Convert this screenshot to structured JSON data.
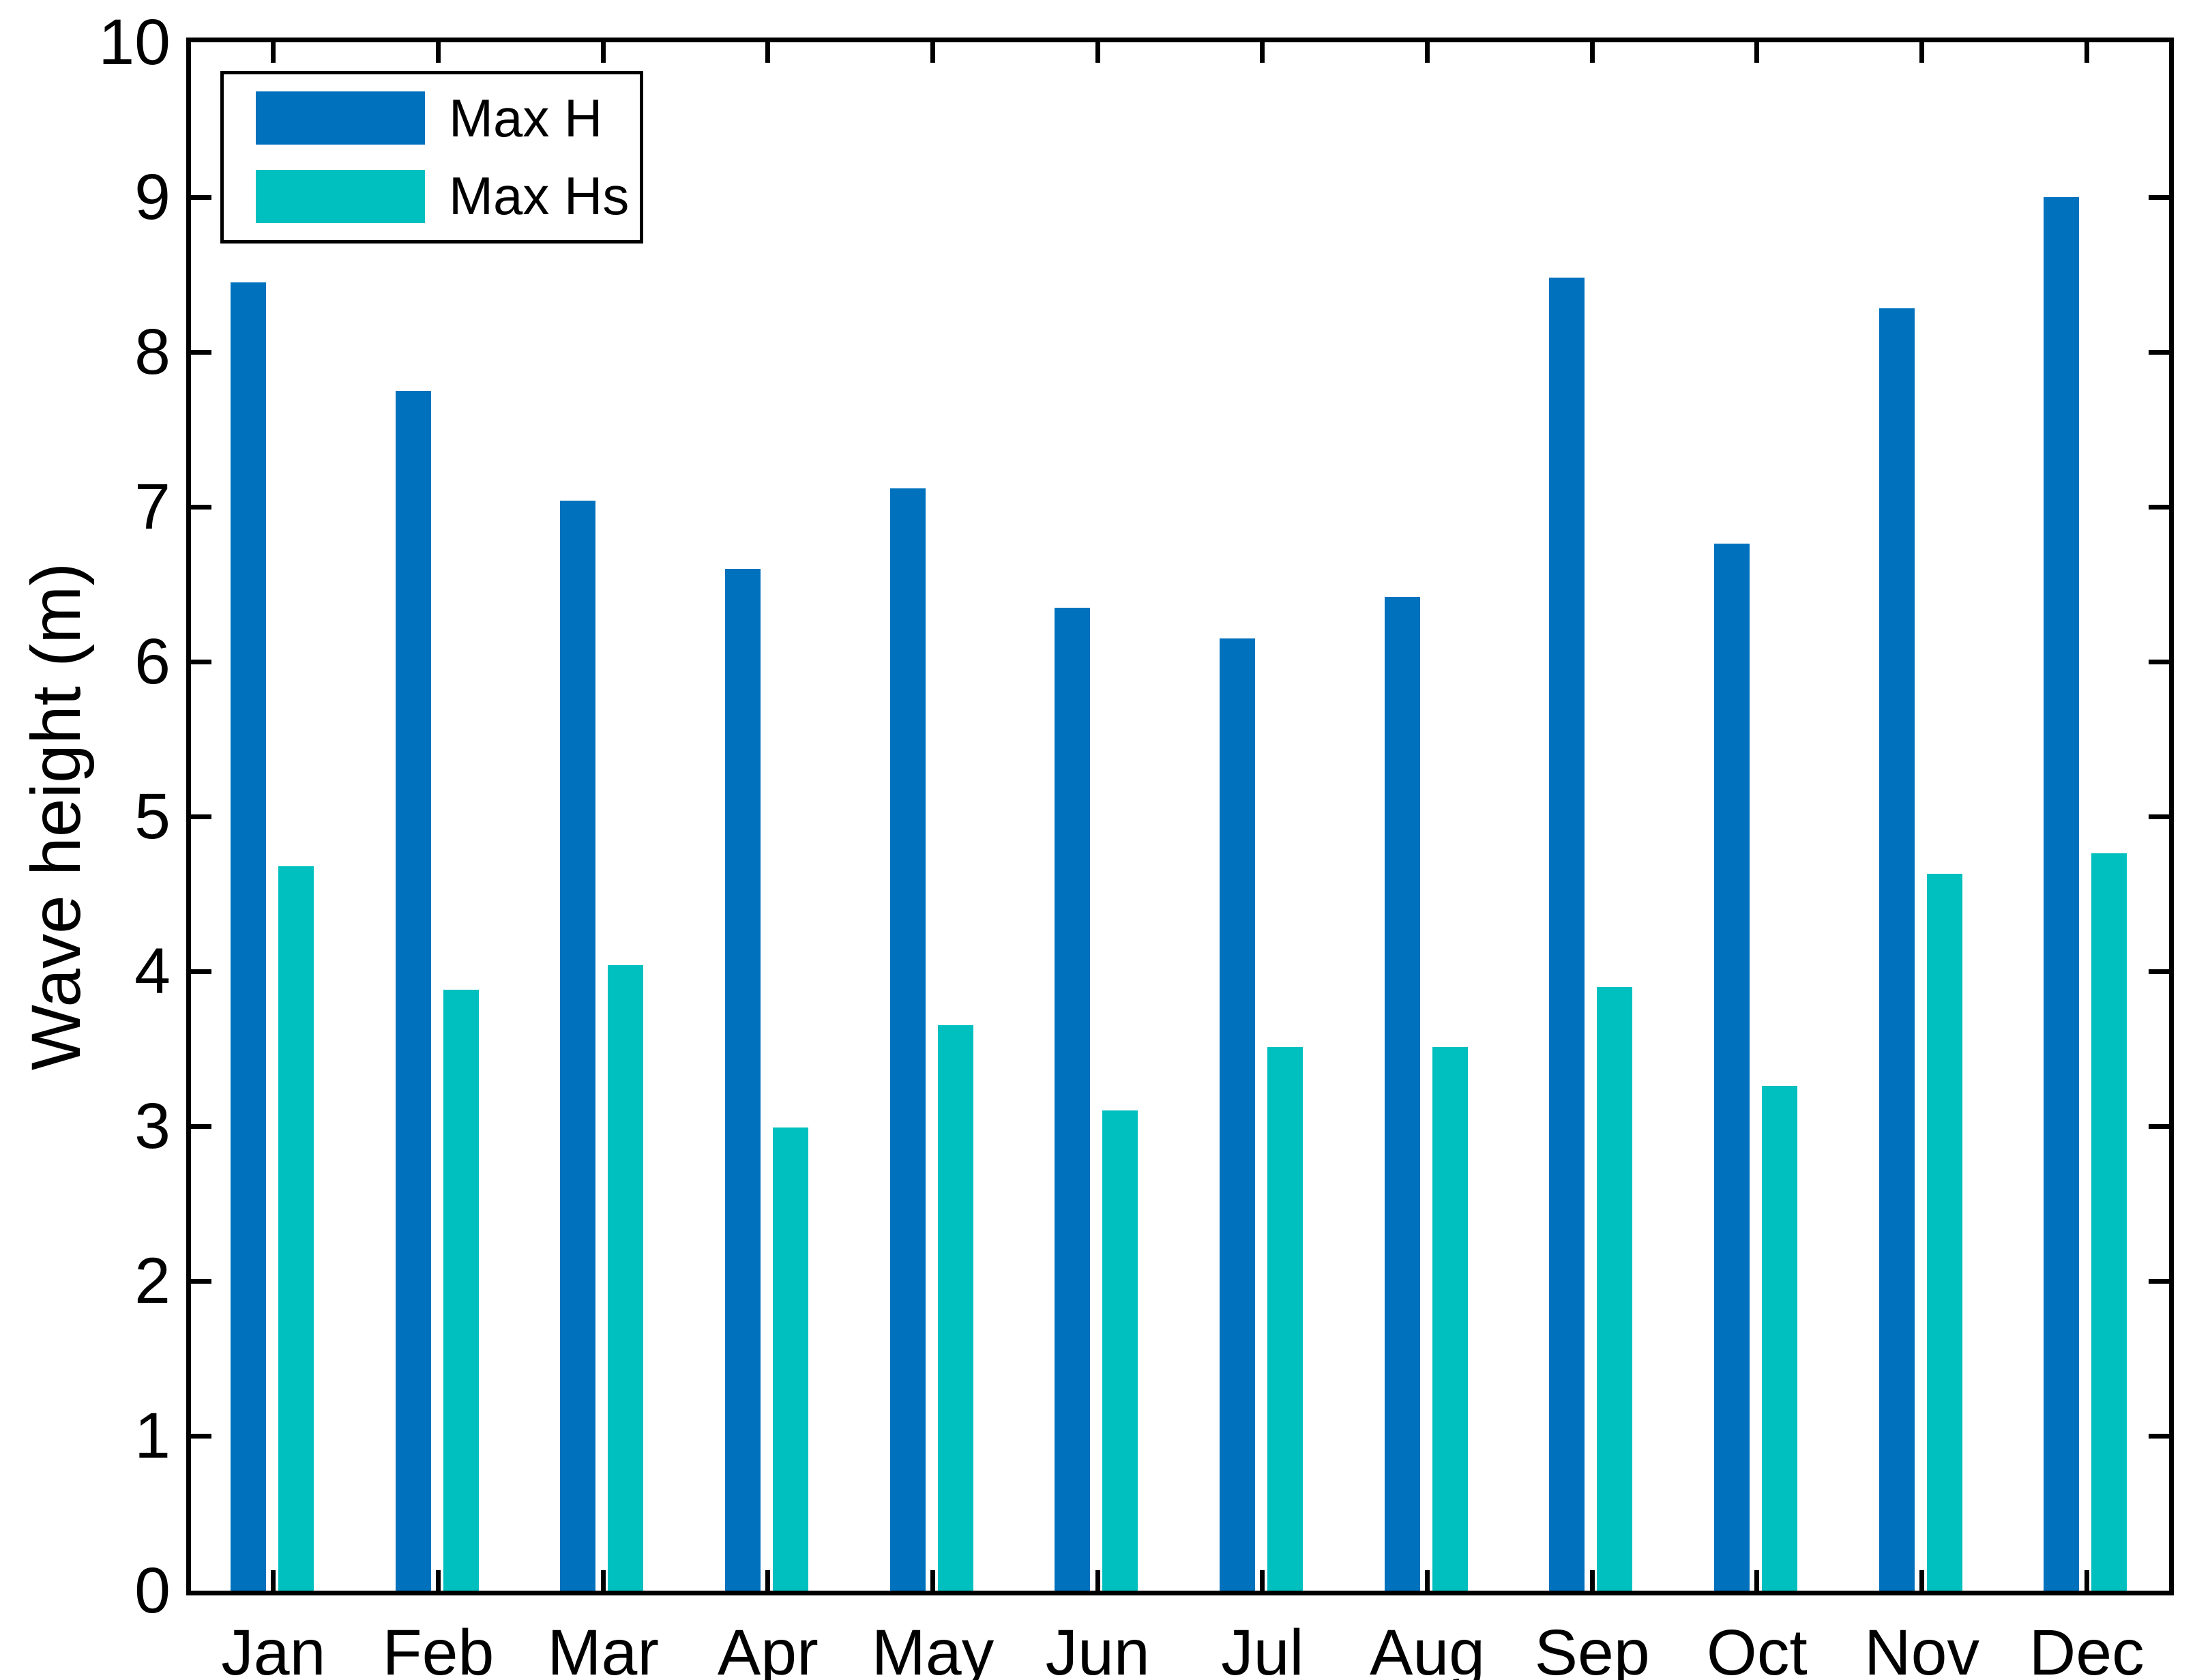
{
  "figure": {
    "background": "#ffffff",
    "axis_color": "#000000"
  },
  "chart_data": {
    "type": "bar",
    "title": "",
    "xlabel": "",
    "ylabel": "Wave height (m)",
    "ylim": [
      0,
      10
    ],
    "yticks": [
      0,
      1,
      2,
      3,
      4,
      5,
      6,
      7,
      8,
      9,
      10
    ],
    "grid": false,
    "legend_position": "top-left",
    "categories": [
      "Jan",
      "Feb",
      "Mar",
      "Apr",
      "May",
      "Jun",
      "Jul",
      "Aug",
      "Sep",
      "Oct",
      "Nov",
      "Dec"
    ],
    "series": [
      {
        "name": "Max H",
        "color": "#0072BD",
        "values": [
          8.45,
          7.75,
          7.04,
          6.6,
          7.12,
          6.35,
          6.15,
          6.42,
          8.48,
          6.76,
          8.28,
          9.0
        ]
      },
      {
        "name": "Max Hs",
        "color": "#00BFBF",
        "values": [
          4.68,
          3.88,
          4.04,
          2.99,
          3.65,
          3.1,
          3.51,
          3.51,
          3.9,
          3.26,
          4.63,
          4.76
        ]
      }
    ]
  },
  "legend": {
    "items": [
      {
        "label": "Max H",
        "color": "#0072BD"
      },
      {
        "label": "Max Hs",
        "color": "#00BFBF"
      }
    ]
  }
}
